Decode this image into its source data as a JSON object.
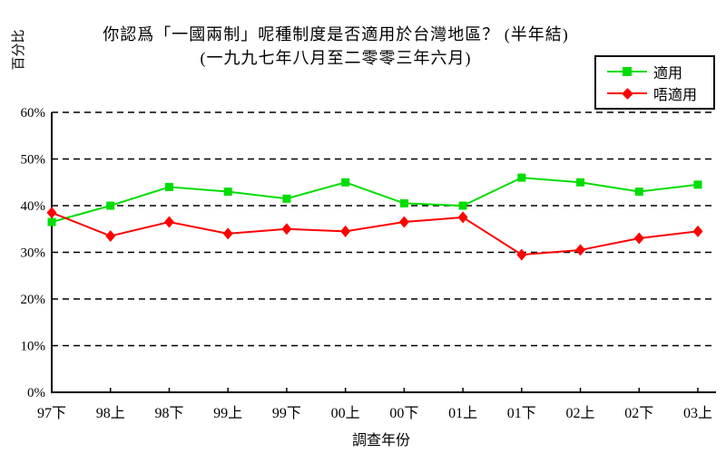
{
  "page": {
    "background": "#ffffff"
  },
  "chart_data": {
    "type": "line",
    "title": "你認爲「一國兩制」呢種制度是否適用於台灣地區？ (半年結)",
    "subtitle": "(一九九七年八月至二零零三年六月)",
    "xlabel": "調查年份",
    "ylabel": "百分比",
    "ylim": [
      0,
      60
    ],
    "y_ticks": [
      "0%",
      "10%",
      "20%",
      "30%",
      "40%",
      "50%",
      "60%"
    ],
    "y_tick_step": 10,
    "grid": "horizontal-dashed-black",
    "legend_position": "top-right",
    "categories": [
      "97下",
      "98上",
      "98下",
      "99上",
      "99下",
      "00上",
      "00下",
      "01上",
      "01下",
      "02上",
      "02下",
      "03上"
    ],
    "series": [
      {
        "name": "適用",
        "color": "#00dd00",
        "marker": "square",
        "values": [
          36.5,
          40,
          44,
          43,
          41.5,
          45,
          40.5,
          40,
          46,
          45,
          43,
          44.5
        ]
      },
      {
        "name": "唔適用",
        "color": "#ff0000",
        "marker": "diamond",
        "values": [
          38.5,
          33.5,
          36.5,
          34,
          35,
          34.5,
          36.5,
          37.5,
          29.5,
          30.5,
          33,
          34.5
        ]
      }
    ]
  }
}
